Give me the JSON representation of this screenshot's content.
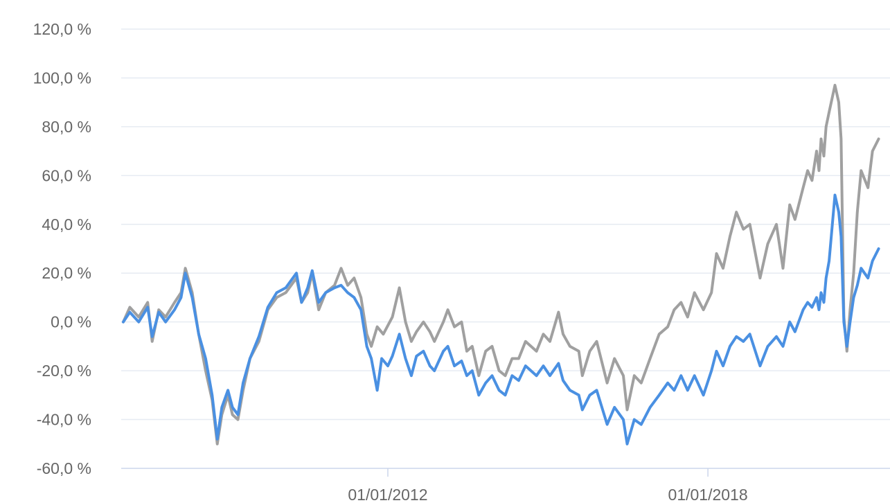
{
  "chart_data": {
    "type": "line",
    "x_axis": {
      "type": "date",
      "range": [
        "2007-01-01",
        "2021-06-01"
      ],
      "ticks": [
        {
          "value": "2012-01-01",
          "label": "01/01/2012"
        },
        {
          "value": "2018-01-01",
          "label": "01/01/2018"
        }
      ]
    },
    "y_axis": {
      "unit": "%",
      "ylim": [
        -60,
        120
      ],
      "ticks": [
        {
          "value": 120,
          "label": "120,0 %"
        },
        {
          "value": 100,
          "label": "100,0 %"
        },
        {
          "value": 80,
          "label": "80,0 %"
        },
        {
          "value": 60,
          "label": "60,0 %"
        },
        {
          "value": 40,
          "label": "40,0 %"
        },
        {
          "value": 20,
          "label": "20,0 %"
        },
        {
          "value": 0,
          "label": "0,0 %"
        },
        {
          "value": -20,
          "label": "-20,0 %"
        },
        {
          "value": -40,
          "label": "-40,0 %"
        },
        {
          "value": -60,
          "label": "-60,0 %"
        }
      ]
    },
    "grid": true,
    "legend": "none",
    "series": [
      {
        "color": "#a0a0a0",
        "points": [
          [
            "2007-01-15",
            0
          ],
          [
            "2007-03-01",
            6
          ],
          [
            "2007-05-01",
            2
          ],
          [
            "2007-07-01",
            8
          ],
          [
            "2007-08-01",
            -8
          ],
          [
            "2007-09-15",
            5
          ],
          [
            "2007-11-01",
            2
          ],
          [
            "2008-01-01",
            8
          ],
          [
            "2008-02-15",
            12
          ],
          [
            "2008-03-15",
            22
          ],
          [
            "2008-05-01",
            12
          ],
          [
            "2008-06-15",
            -5
          ],
          [
            "2008-08-01",
            -20
          ],
          [
            "2008-09-15",
            -32
          ],
          [
            "2008-10-20",
            -50
          ],
          [
            "2008-11-20",
            -38
          ],
          [
            "2009-01-01",
            -30
          ],
          [
            "2009-02-01",
            -38
          ],
          [
            "2009-03-10",
            -40
          ],
          [
            "2009-04-15",
            -28
          ],
          [
            "2009-06-01",
            -15
          ],
          [
            "2009-08-01",
            -8
          ],
          [
            "2009-10-01",
            5
          ],
          [
            "2009-12-01",
            10
          ],
          [
            "2010-02-01",
            12
          ],
          [
            "2010-04-15",
            18
          ],
          [
            "2010-05-20",
            8
          ],
          [
            "2010-07-01",
            12
          ],
          [
            "2010-08-01",
            20
          ],
          [
            "2010-09-15",
            5
          ],
          [
            "2010-11-01",
            12
          ],
          [
            "2011-01-01",
            15
          ],
          [
            "2011-02-15",
            22
          ],
          [
            "2011-04-01",
            15
          ],
          [
            "2011-05-15",
            18
          ],
          [
            "2011-07-01",
            10
          ],
          [
            "2011-08-10",
            -5
          ],
          [
            "2011-09-10",
            -10
          ],
          [
            "2011-10-20",
            -2
          ],
          [
            "2011-12-01",
            -5
          ],
          [
            "2012-02-01",
            2
          ],
          [
            "2012-03-20",
            14
          ],
          [
            "2012-05-01",
            0
          ],
          [
            "2012-06-10",
            -8
          ],
          [
            "2012-07-15",
            -4
          ],
          [
            "2012-09-01",
            0
          ],
          [
            "2012-10-15",
            -4
          ],
          [
            "2012-11-15",
            -8
          ],
          [
            "2013-01-15",
            0
          ],
          [
            "2013-02-15",
            5
          ],
          [
            "2013-04-01",
            -2
          ],
          [
            "2013-05-20",
            0
          ],
          [
            "2013-06-25",
            -12
          ],
          [
            "2013-08-01",
            -10
          ],
          [
            "2013-09-15",
            -22
          ],
          [
            "2013-11-01",
            -12
          ],
          [
            "2013-12-15",
            -10
          ],
          [
            "2014-02-01",
            -20
          ],
          [
            "2014-03-15",
            -22
          ],
          [
            "2014-05-01",
            -15
          ],
          [
            "2014-06-15",
            -15
          ],
          [
            "2014-08-01",
            -8
          ],
          [
            "2014-10-15",
            -12
          ],
          [
            "2014-12-01",
            -5
          ],
          [
            "2015-01-15",
            -8
          ],
          [
            "2015-03-15",
            4
          ],
          [
            "2015-04-15",
            -5
          ],
          [
            "2015-06-01",
            -10
          ],
          [
            "2015-08-01",
            -12
          ],
          [
            "2015-08-25",
            -22
          ],
          [
            "2015-10-15",
            -12
          ],
          [
            "2015-12-01",
            -8
          ],
          [
            "2016-02-11",
            -25
          ],
          [
            "2016-04-01",
            -15
          ],
          [
            "2016-06-01",
            -22
          ],
          [
            "2016-06-27",
            -36
          ],
          [
            "2016-08-15",
            -22
          ],
          [
            "2016-10-01",
            -25
          ],
          [
            "2016-12-01",
            -15
          ],
          [
            "2017-02-01",
            -5
          ],
          [
            "2017-04-01",
            -2
          ],
          [
            "2017-05-15",
            5
          ],
          [
            "2017-07-01",
            8
          ],
          [
            "2017-08-15",
            2
          ],
          [
            "2017-10-01",
            12
          ],
          [
            "2017-12-01",
            5
          ],
          [
            "2018-01-25",
            12
          ],
          [
            "2018-03-01",
            28
          ],
          [
            "2018-04-15",
            22
          ],
          [
            "2018-06-01",
            35
          ],
          [
            "2018-07-15",
            45
          ],
          [
            "2018-09-01",
            38
          ],
          [
            "2018-10-15",
            40
          ],
          [
            "2018-12-24",
            18
          ],
          [
            "2019-02-15",
            32
          ],
          [
            "2019-04-15",
            40
          ],
          [
            "2019-05-30",
            22
          ],
          [
            "2019-07-15",
            48
          ],
          [
            "2019-08-20",
            42
          ],
          [
            "2019-10-15",
            55
          ],
          [
            "2019-11-15",
            62
          ],
          [
            "2019-12-15",
            58
          ],
          [
            "2020-01-15",
            70
          ],
          [
            "2020-02-01",
            62
          ],
          [
            "2020-02-15",
            75
          ],
          [
            "2020-03-05",
            68
          ],
          [
            "2020-03-20",
            80
          ],
          [
            "2020-04-10",
            86
          ],
          [
            "2020-05-20",
            97
          ],
          [
            "2020-06-15",
            90
          ],
          [
            "2020-07-01",
            75
          ],
          [
            "2020-07-20",
            2
          ],
          [
            "2020-08-10",
            -12
          ],
          [
            "2020-09-01",
            5
          ],
          [
            "2020-09-25",
            20
          ],
          [
            "2020-10-20",
            45
          ],
          [
            "2020-11-15",
            62
          ],
          [
            "2021-01-01",
            55
          ],
          [
            "2021-02-01",
            70
          ],
          [
            "2021-03-15",
            75
          ]
        ]
      },
      {
        "color": "#4a90e2",
        "points": [
          [
            "2007-01-15",
            0
          ],
          [
            "2007-03-01",
            4
          ],
          [
            "2007-05-01",
            0
          ],
          [
            "2007-07-01",
            6
          ],
          [
            "2007-08-01",
            -6
          ],
          [
            "2007-09-15",
            4
          ],
          [
            "2007-11-01",
            0
          ],
          [
            "2008-01-01",
            5
          ],
          [
            "2008-02-15",
            10
          ],
          [
            "2008-03-15",
            20
          ],
          [
            "2008-05-01",
            10
          ],
          [
            "2008-06-15",
            -5
          ],
          [
            "2008-08-01",
            -15
          ],
          [
            "2008-09-15",
            -30
          ],
          [
            "2008-10-20",
            -48
          ],
          [
            "2008-11-20",
            -35
          ],
          [
            "2009-01-01",
            -28
          ],
          [
            "2009-02-01",
            -35
          ],
          [
            "2009-03-10",
            -38
          ],
          [
            "2009-04-15",
            -25
          ],
          [
            "2009-06-01",
            -15
          ],
          [
            "2009-08-01",
            -6
          ],
          [
            "2009-10-01",
            6
          ],
          [
            "2009-12-01",
            12
          ],
          [
            "2010-02-01",
            14
          ],
          [
            "2010-04-15",
            20
          ],
          [
            "2010-05-20",
            8
          ],
          [
            "2010-07-01",
            14
          ],
          [
            "2010-08-01",
            21
          ],
          [
            "2010-09-15",
            8
          ],
          [
            "2010-11-01",
            12
          ],
          [
            "2011-01-01",
            14
          ],
          [
            "2011-02-15",
            15
          ],
          [
            "2011-04-01",
            12
          ],
          [
            "2011-05-15",
            10
          ],
          [
            "2011-07-01",
            5
          ],
          [
            "2011-08-10",
            -10
          ],
          [
            "2011-09-10",
            -15
          ],
          [
            "2011-10-20",
            -28
          ],
          [
            "2011-11-20",
            -15
          ],
          [
            "2012-01-01",
            -18
          ],
          [
            "2012-02-01",
            -14
          ],
          [
            "2012-03-20",
            -5
          ],
          [
            "2012-05-01",
            -15
          ],
          [
            "2012-06-10",
            -22
          ],
          [
            "2012-07-15",
            -14
          ],
          [
            "2012-09-01",
            -12
          ],
          [
            "2012-10-15",
            -18
          ],
          [
            "2012-11-15",
            -20
          ],
          [
            "2013-01-15",
            -12
          ],
          [
            "2013-02-15",
            -10
          ],
          [
            "2013-04-01",
            -18
          ],
          [
            "2013-05-20",
            -16
          ],
          [
            "2013-06-25",
            -22
          ],
          [
            "2013-08-01",
            -20
          ],
          [
            "2013-09-15",
            -30
          ],
          [
            "2013-11-01",
            -25
          ],
          [
            "2013-12-15",
            -22
          ],
          [
            "2014-02-01",
            -28
          ],
          [
            "2014-03-15",
            -30
          ],
          [
            "2014-05-01",
            -22
          ],
          [
            "2014-06-15",
            -24
          ],
          [
            "2014-08-01",
            -18
          ],
          [
            "2014-10-15",
            -22
          ],
          [
            "2014-12-01",
            -18
          ],
          [
            "2015-01-15",
            -22
          ],
          [
            "2015-03-15",
            -17
          ],
          [
            "2015-04-15",
            -24
          ],
          [
            "2015-06-01",
            -28
          ],
          [
            "2015-08-01",
            -30
          ],
          [
            "2015-08-25",
            -36
          ],
          [
            "2015-10-15",
            -30
          ],
          [
            "2015-12-01",
            -28
          ],
          [
            "2016-02-11",
            -42
          ],
          [
            "2016-04-01",
            -35
          ],
          [
            "2016-06-01",
            -40
          ],
          [
            "2016-06-27",
            -50
          ],
          [
            "2016-08-15",
            -40
          ],
          [
            "2016-10-01",
            -42
          ],
          [
            "2016-12-01",
            -35
          ],
          [
            "2017-02-01",
            -30
          ],
          [
            "2017-04-01",
            -25
          ],
          [
            "2017-05-15",
            -28
          ],
          [
            "2017-07-01",
            -22
          ],
          [
            "2017-08-15",
            -28
          ],
          [
            "2017-10-01",
            -22
          ],
          [
            "2017-12-01",
            -30
          ],
          [
            "2018-01-25",
            -20
          ],
          [
            "2018-03-01",
            -12
          ],
          [
            "2018-04-15",
            -18
          ],
          [
            "2018-06-01",
            -10
          ],
          [
            "2018-07-15",
            -6
          ],
          [
            "2018-09-01",
            -8
          ],
          [
            "2018-10-15",
            -5
          ],
          [
            "2018-12-24",
            -18
          ],
          [
            "2019-02-15",
            -10
          ],
          [
            "2019-04-15",
            -6
          ],
          [
            "2019-05-30",
            -10
          ],
          [
            "2019-07-15",
            0
          ],
          [
            "2019-08-20",
            -4
          ],
          [
            "2019-10-15",
            5
          ],
          [
            "2019-11-15",
            8
          ],
          [
            "2019-12-15",
            6
          ],
          [
            "2020-01-15",
            10
          ],
          [
            "2020-02-01",
            5
          ],
          [
            "2020-02-15",
            12
          ],
          [
            "2020-03-05",
            8
          ],
          [
            "2020-03-20",
            18
          ],
          [
            "2020-04-10",
            25
          ],
          [
            "2020-05-20",
            52
          ],
          [
            "2020-06-15",
            45
          ],
          [
            "2020-07-01",
            35
          ],
          [
            "2020-07-20",
            0
          ],
          [
            "2020-08-10",
            -10
          ],
          [
            "2020-09-01",
            0
          ],
          [
            "2020-09-25",
            10
          ],
          [
            "2020-10-20",
            15
          ],
          [
            "2020-11-15",
            22
          ],
          [
            "2021-01-01",
            18
          ],
          [
            "2021-02-01",
            25
          ],
          [
            "2021-03-15",
            30
          ]
        ]
      }
    ]
  }
}
